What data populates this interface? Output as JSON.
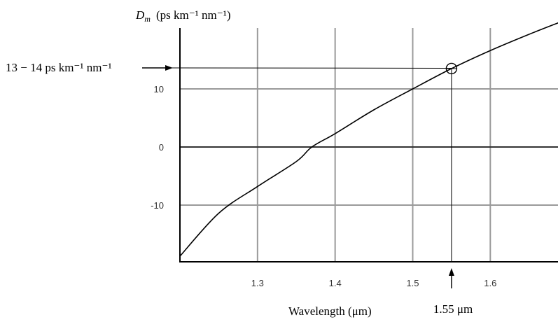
{
  "chart_data": {
    "type": "line",
    "ylabel_symbol": "D",
    "ylabel_subscript": "m",
    "ylabel_units": "(ps km⁻¹ nm⁻¹)",
    "xlabel": "Wavelength (μm)",
    "xlim": [
      1.2,
      1.69
    ],
    "ylim": [
      -20,
      20
    ],
    "x_ticks": [
      "1.3",
      "1.4",
      "1.5",
      "1.6"
    ],
    "y_ticks": [
      "-10",
      "0",
      "10"
    ],
    "grid": true,
    "series": [
      {
        "x": [
          1.2,
          1.25,
          1.3,
          1.35,
          1.37,
          1.4,
          1.45,
          1.5,
          1.55,
          1.6,
          1.65,
          1.69
        ],
        "y": [
          -18.8,
          -11.4,
          -6.8,
          -2.5,
          0.0,
          2.3,
          6.4,
          10.0,
          13.5,
          16.6,
          19.4,
          21.5
        ]
      }
    ],
    "annotations": {
      "point_label": "13 − 14 ps km⁻¹ nm⁻¹",
      "point_x": 1.55,
      "point_y": 13.5,
      "wavelength_label": "1.55 μm"
    }
  }
}
